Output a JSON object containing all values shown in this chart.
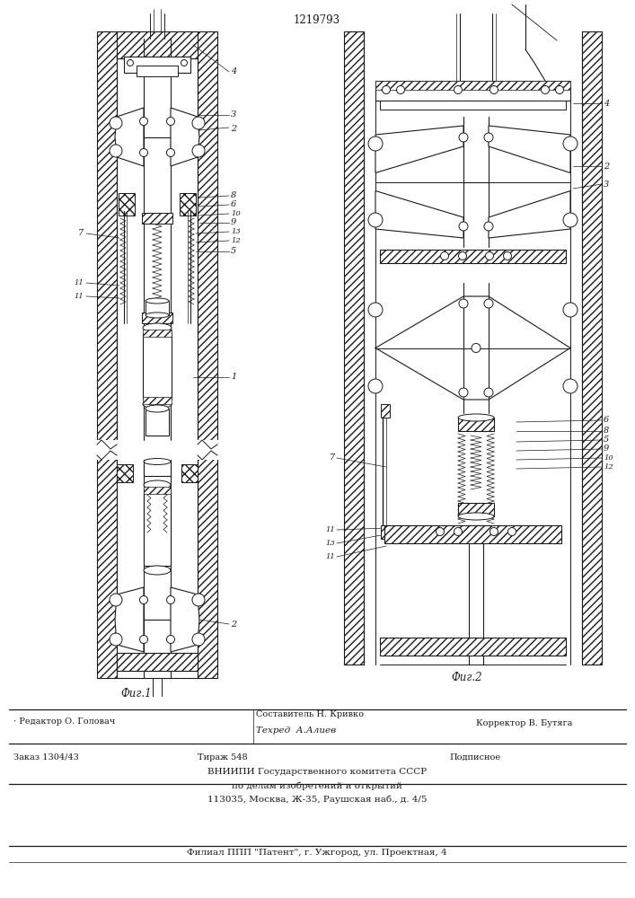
{
  "patent_number": "1219793",
  "fig1_caption": "Фиг.1",
  "fig2_caption": "Фиг.2",
  "footer_editor": "· Редактор О. Головач",
  "footer_author": "Составитель Н. Кривко",
  "footer_tech": "Техред  А.Алиев",
  "footer_corrector": "Корректор В. Бутяга",
  "footer_order": "Заказ 1304/43",
  "footer_tirazh": "Тираж 548",
  "footer_podp": "Подписное",
  "footer_org1": "ВНИИПИ Государственного комитета СССР",
  "footer_org2": "по делам изобретений и открытий",
  "footer_org3": "113035, Москва, Ж-35, Раушская наб., д. 4/5",
  "footer_filial": "Филиал ППП \"Патент\", г. Ужгород, ул. Проектная, 4",
  "bg_color": "#f5f5f0",
  "line_color": "#1a1a1a"
}
